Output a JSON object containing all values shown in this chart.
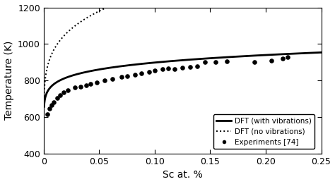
{
  "title": "",
  "xlabel": "Sc at. %",
  "ylabel": "Temperature (K)",
  "xlim": [
    0,
    0.25
  ],
  "ylim": [
    400,
    1200
  ],
  "xticks": [
    0.0,
    0.05,
    0.1,
    0.15,
    0.2,
    0.25
  ],
  "yticks": [
    400,
    600,
    800,
    1000,
    1200
  ],
  "background_color": "#ffffff",
  "dft_with_vib_color": "#000000",
  "dft_no_vib_color": "#000000",
  "exp_color": "#000000",
  "legend_labels": [
    "DFT (with vibrations)",
    "DFT (no vibrations)",
    "Experiments [74]"
  ],
  "with_vib_A": 14200,
  "with_vib_B": 13.5,
  "no_vib_A": 9200,
  "no_vib_B": 4.8,
  "exp_x": [
    0.003,
    0.005,
    0.007,
    0.009,
    0.012,
    0.015,
    0.018,
    0.022,
    0.028,
    0.033,
    0.038,
    0.042,
    0.048,
    0.055,
    0.062,
    0.07,
    0.075,
    0.082,
    0.088,
    0.095,
    0.1,
    0.107,
    0.112,
    0.118,
    0.125,
    0.132,
    0.138,
    0.145,
    0.155,
    0.165,
    0.19,
    0.205,
    0.215,
    0.22
  ],
  "exp_y": [
    615,
    645,
    665,
    680,
    705,
    720,
    735,
    748,
    762,
    768,
    775,
    780,
    790,
    800,
    808,
    820,
    825,
    833,
    840,
    848,
    857,
    862,
    865,
    862,
    870,
    875,
    880,
    900,
    900,
    905,
    900,
    910,
    920,
    930
  ]
}
